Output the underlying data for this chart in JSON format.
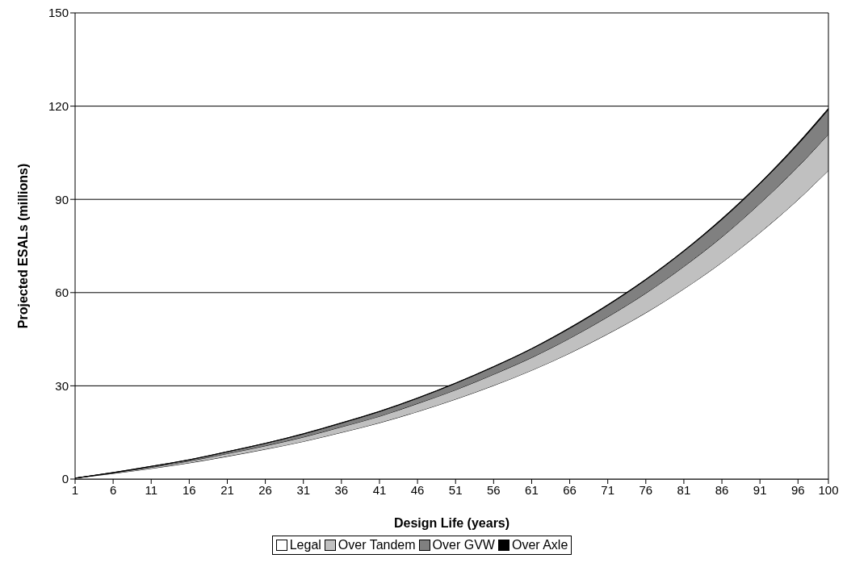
{
  "chart_data": {
    "type": "area",
    "stacked": true,
    "xlabel": "Design Life (years)",
    "ylabel": "Projected ESALs (millions)",
    "x": [
      1,
      6,
      11,
      16,
      21,
      26,
      31,
      36,
      41,
      46,
      51,
      56,
      61,
      66,
      71,
      76,
      81,
      86,
      91,
      96,
      100
    ],
    "series": [
      {
        "name": "Legal",
        "color": "#ffffff",
        "values": [
          0.3,
          1.8,
          3.4,
          5.2,
          7.3,
          9.6,
          12.1,
          15.0,
          18.1,
          21.7,
          25.7,
          30.1,
          35.0,
          40.5,
          46.7,
          53.5,
          61.2,
          69.7,
          79.3,
          89.9,
          99.3
        ]
      },
      {
        "name": "Over Tandem",
        "color": "#c0c0c0",
        "values": [
          0,
          0.2,
          0.4,
          0.6,
          0.9,
          1.1,
          1.4,
          1.8,
          2.1,
          2.6,
          3.0,
          3.6,
          4.1,
          4.8,
          5.5,
          6.3,
          7.2,
          8.2,
          9.4,
          10.6,
          11.7
        ]
      },
      {
        "name": "Over GVW",
        "color": "#808080",
        "values": [
          0,
          0.1,
          0.3,
          0.4,
          0.6,
          0.8,
          1.0,
          1.2,
          1.5,
          1.7,
          2.1,
          2.4,
          2.8,
          3.2,
          3.7,
          4.3,
          4.9,
          5.6,
          6.3,
          7.2,
          7.9
        ]
      },
      {
        "name": "Over Axle",
        "color": "#000000",
        "values": [
          0,
          0,
          0,
          0,
          0,
          0,
          0.1,
          0.1,
          0.1,
          0.1,
          0.1,
          0.1,
          0.1,
          0.2,
          0.2,
          0.2,
          0.2,
          0.3,
          0.3,
          0.4,
          0.4
        ]
      }
    ],
    "xlim": [
      1,
      100
    ],
    "xticks": [
      1,
      6,
      11,
      16,
      21,
      26,
      31,
      36,
      41,
      46,
      51,
      56,
      61,
      66,
      71,
      76,
      81,
      86,
      91,
      96,
      100
    ],
    "ylim": [
      0,
      150
    ],
    "yticks": [
      0,
      30,
      60,
      90,
      120,
      150
    ],
    "grid": "y",
    "legend": "bottom"
  }
}
